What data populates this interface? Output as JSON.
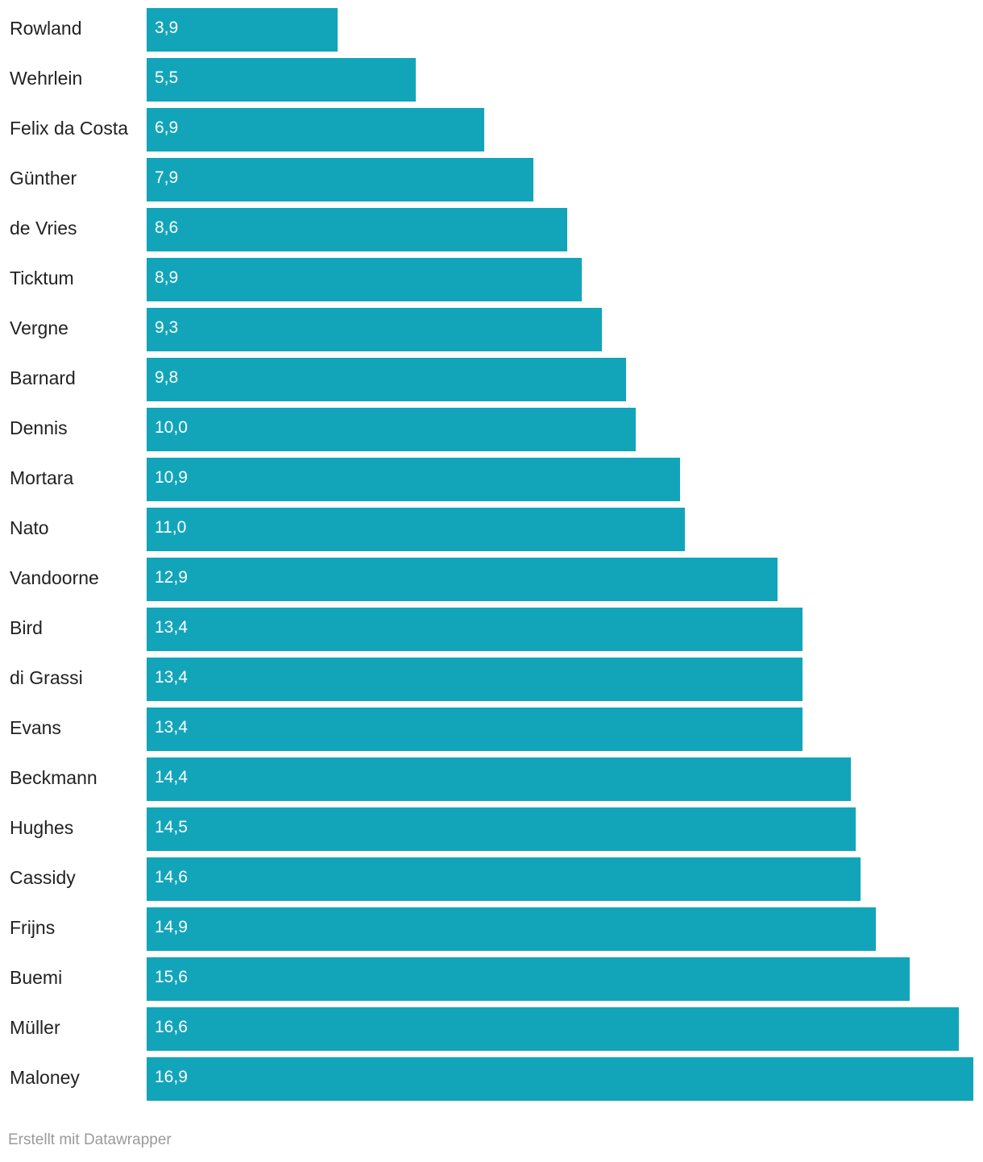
{
  "chart_data": {
    "type": "bar",
    "orientation": "horizontal",
    "categories": [
      "Rowland",
      "Wehrlein",
      "Felix da Costa",
      "Günther",
      "de Vries",
      "Ticktum",
      "Vergne",
      "Barnard",
      "Dennis",
      "Mortara",
      "Nato",
      "Vandoorne",
      "Bird",
      "di Grassi",
      "Evans",
      "Beckmann",
      "Hughes",
      "Cassidy",
      "Frijns",
      "Buemi",
      "Müller",
      "Maloney"
    ],
    "values": [
      3.9,
      5.5,
      6.9,
      7.9,
      8.6,
      8.9,
      9.3,
      9.8,
      10.0,
      10.9,
      11.0,
      12.9,
      13.4,
      13.4,
      13.4,
      14.4,
      14.5,
      14.6,
      14.9,
      15.6,
      16.6,
      16.9
    ],
    "value_labels": [
      "3,9",
      "5,5",
      "6,9",
      "7,9",
      "8,6",
      "8,9",
      "9,3",
      "9,8",
      "10,0",
      "10,9",
      "11,0",
      "12,9",
      "13,4",
      "13,4",
      "13,4",
      "14,4",
      "14,5",
      "14,6",
      "14,9",
      "15,6",
      "16,6",
      "16,9"
    ],
    "xlim": [
      0,
      16.9
    ],
    "title": "",
    "xlabel": "",
    "ylabel": "",
    "grid": false,
    "bar_color": "#12a5ba"
  },
  "footer": {
    "credit": "Erstellt mit Datawrapper"
  }
}
